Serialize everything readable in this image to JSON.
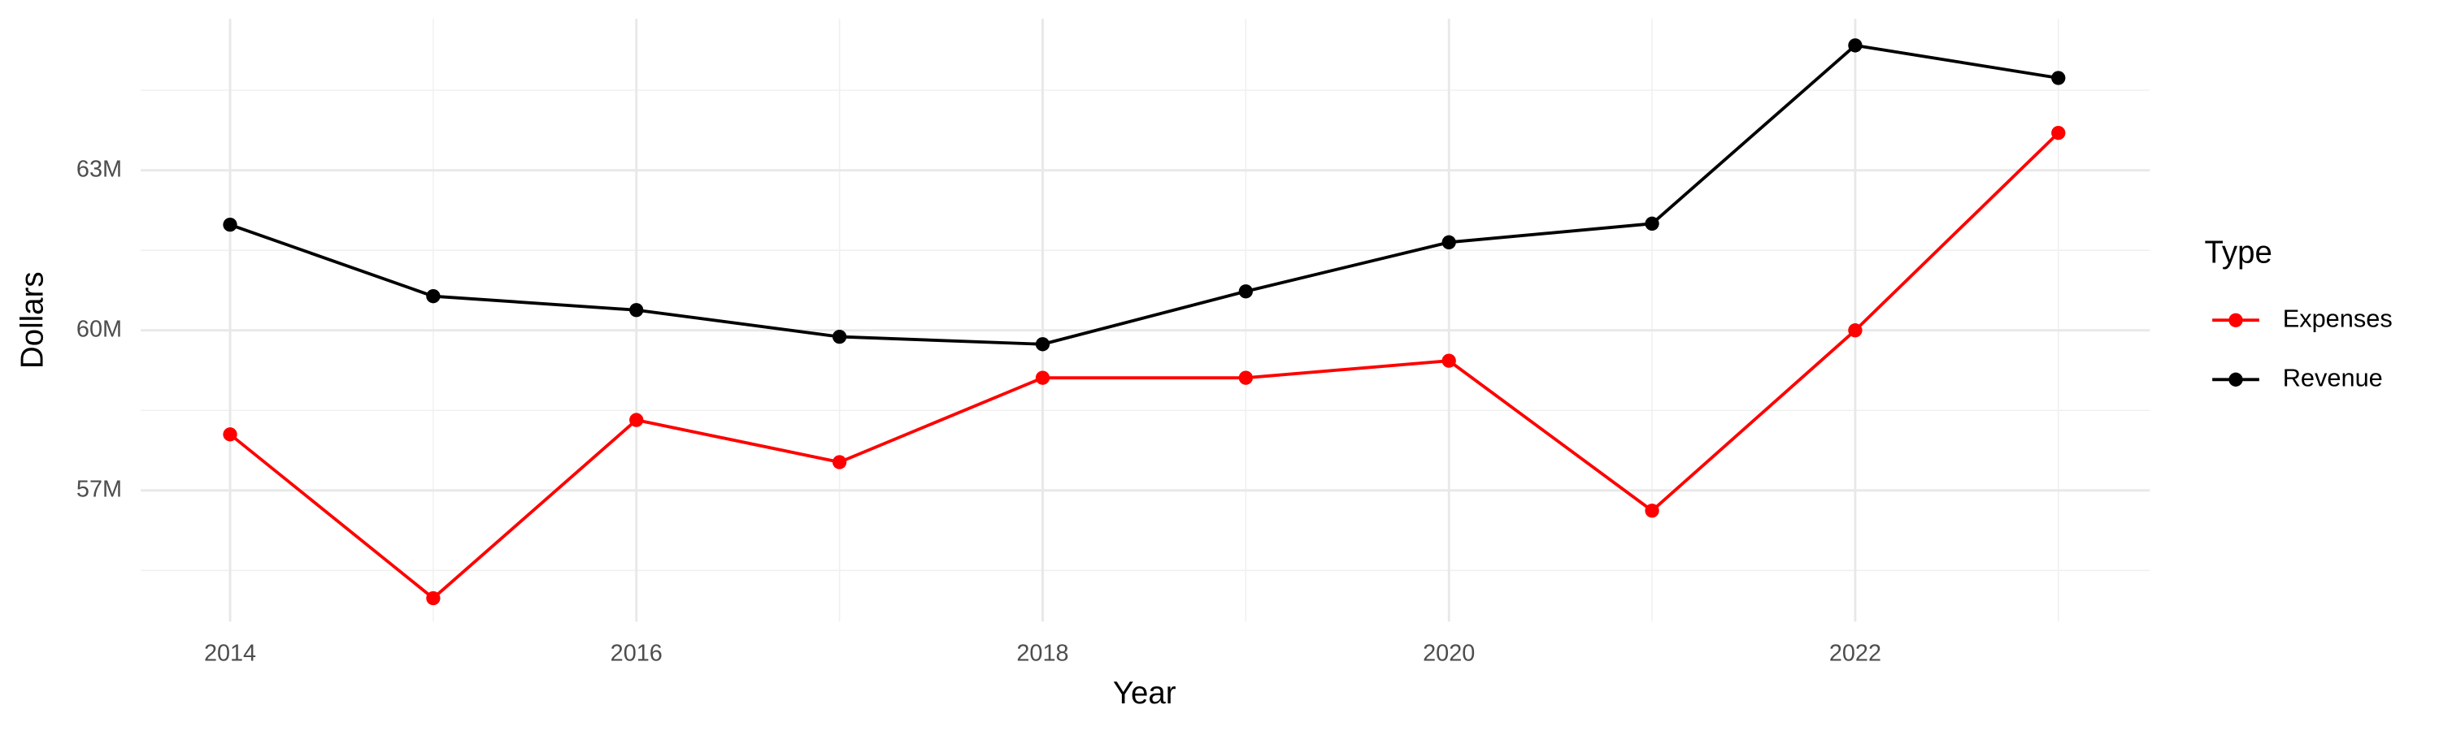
{
  "chart_data": {
    "type": "line",
    "x_label": "Year",
    "y_label": "Dollars",
    "legend_title": "Type",
    "x": [
      2014,
      2015,
      2016,
      2017,
      2018,
      2019,
      2020,
      2021,
      2022,
      2023
    ],
    "series": [
      {
        "name": "Expenses",
        "color": "#ff0000",
        "values": [
          58050000,
          54980000,
          58320000,
          57530000,
          59110000,
          59110000,
          59430000,
          56620000,
          60000000,
          63700000
        ]
      },
      {
        "name": "Revenue",
        "color": "#000000",
        "values": [
          61980000,
          60640000,
          60380000,
          59880000,
          59740000,
          60730000,
          61650000,
          62000000,
          65340000,
          64730000
        ]
      }
    ],
    "xlim": [
      2013.56,
      2023.45
    ],
    "xticks": [
      2014,
      2016,
      2018,
      2020,
      2022
    ],
    "ylim": [
      54540000,
      65840000
    ],
    "yticks": [
      {
        "value": 57000000,
        "label": "57M"
      },
      {
        "value": 60000000,
        "label": "60M"
      },
      {
        "value": 63000000,
        "label": "63M"
      }
    ],
    "grid": true,
    "legend": "right"
  }
}
